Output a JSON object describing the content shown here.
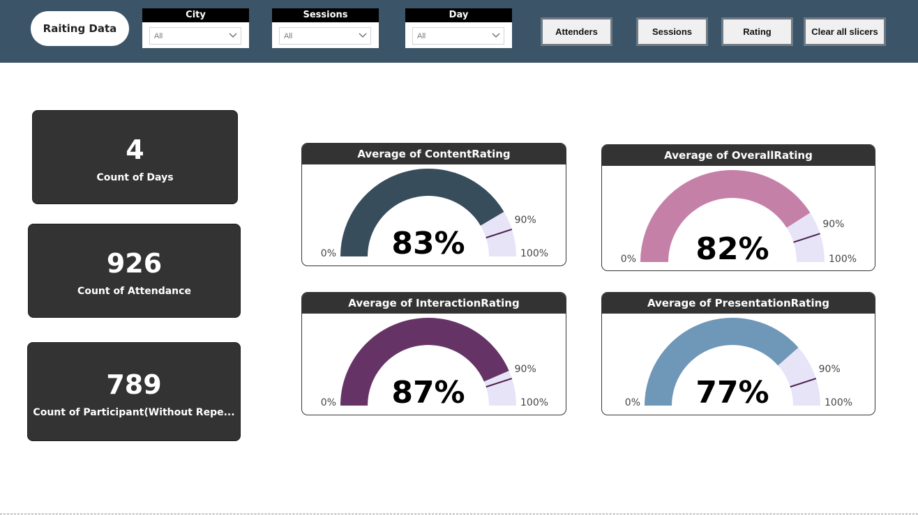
{
  "title": "Raiting Data",
  "slicers": [
    {
      "label": "City",
      "value": "All"
    },
    {
      "label": "Sessions",
      "value": "All"
    },
    {
      "label": "Day",
      "value": "All"
    }
  ],
  "buttons": {
    "attenders": "Attenders",
    "sessions": "Sessions",
    "rating": "Rating",
    "clear": "Clear all slicers"
  },
  "kpis": [
    {
      "value": "4",
      "label": "Count of Days"
    },
    {
      "value": "926",
      "label": "Count of Attendance"
    },
    {
      "value": "789",
      "label": "Count of Participant(Without Repe..."
    }
  ],
  "chart_data": [
    {
      "type": "gauge",
      "title": "Average of ContentRating",
      "value": 83,
      "value_label": "83%",
      "min": 0,
      "max": 100,
      "target": 90,
      "min_label": "0%",
      "max_label": "100%",
      "target_label": "90%",
      "color": "#374d5c"
    },
    {
      "type": "gauge",
      "title": "Average of OverallRating",
      "value": 82,
      "value_label": "82%",
      "min": 0,
      "max": 100,
      "target": 90,
      "min_label": "0%",
      "max_label": "100%",
      "target_label": "90%",
      "color": "#c580a8"
    },
    {
      "type": "gauge",
      "title": "Average of InteractionRating",
      "value": 87,
      "value_label": "87%",
      "min": 0,
      "max": 100,
      "target": 90,
      "min_label": "0%",
      "max_label": "100%",
      "target_label": "90%",
      "color": "#663366"
    },
    {
      "type": "gauge",
      "title": "Average of PresentationRating",
      "value": 77,
      "value_label": "77%",
      "min": 0,
      "max": 100,
      "target": 90,
      "min_label": "0%",
      "max_label": "100%",
      "target_label": "90%",
      "color": "#6f97b8"
    }
  ],
  "colors": {
    "header_bg": "#3c5467",
    "card_bg": "#333333",
    "gauge_track": "#e8e4f8",
    "target_line": "#4a1f4a"
  }
}
